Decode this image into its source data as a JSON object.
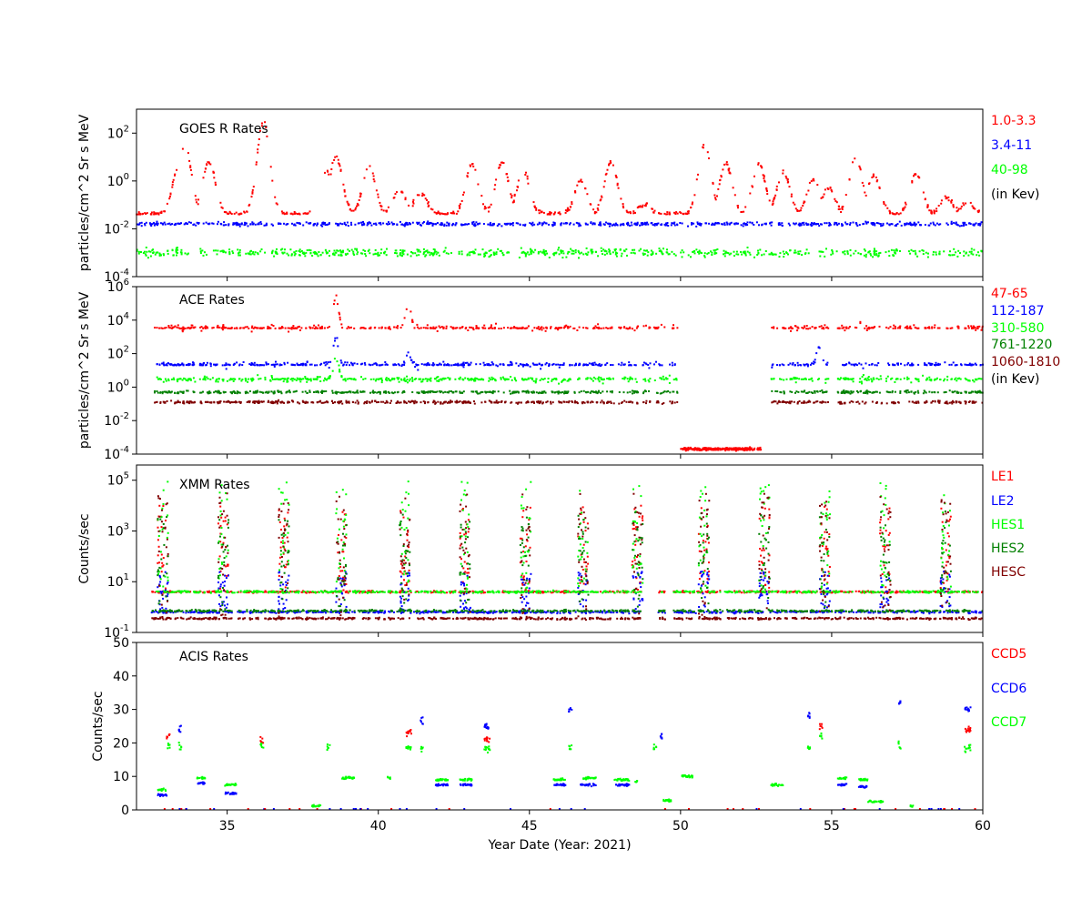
{
  "xlabel": "Year Date (Year: 2021)",
  "x_ticks": [
    35,
    40,
    45,
    50,
    55,
    60
  ],
  "xlim": [
    32,
    60
  ],
  "colors": {
    "red": "#ff0000",
    "blue": "#0000ff",
    "lime": "#00ff00",
    "green": "#008000",
    "darkred": "#800000",
    "black": "#000000"
  },
  "chart_data": [
    {
      "type": "scatter",
      "title": "GOES R Rates",
      "ylabel": "particles/cm^2 Sr s MeV",
      "yscale": "log",
      "ylim_exp": [
        -4,
        3
      ],
      "y_ticks": [
        {
          "base": "10",
          "exp": "2"
        },
        {
          "base": "10",
          "exp": "0"
        },
        {
          "base": "10",
          "exp": "-2"
        },
        {
          "base": "10",
          "exp": "-4"
        }
      ],
      "legend": [
        {
          "label": "1.0-3.3",
          "color": "#ff0000"
        },
        {
          "label": "3.4-11",
          "color": "#0000ff"
        },
        {
          "label": "40-98",
          "color": "#00ff00"
        },
        {
          "label": "(in Kev)",
          "color": "#000000"
        }
      ],
      "series": [
        {
          "name": "1.0-3.3",
          "color": "#ff0000",
          "baseline_exp": -1.4,
          "peaks": [
            [
              33.6,
              1.5
            ],
            [
              33.4,
              0.6
            ],
            [
              34.4,
              0.8
            ],
            [
              36.2,
              2.5
            ],
            [
              38.6,
              1.0
            ],
            [
              38.3,
              0.4
            ],
            [
              39.7,
              0.6
            ],
            [
              40.7,
              -0.4
            ],
            [
              41.4,
              -0.5
            ],
            [
              43.1,
              0.7
            ],
            [
              44.1,
              0.8
            ],
            [
              44.8,
              0.4
            ],
            [
              46.7,
              0.0
            ],
            [
              47.7,
              0.8
            ],
            [
              48.8,
              -1.0
            ],
            [
              50.8,
              1.5
            ],
            [
              51.5,
              0.7
            ],
            [
              52.6,
              0.7
            ],
            [
              53.4,
              0.4
            ],
            [
              54.4,
              0.1
            ],
            [
              54.9,
              -0.3
            ],
            [
              55.8,
              1.0
            ],
            [
              56.4,
              0.2
            ],
            [
              57.8,
              0.3
            ],
            [
              58.8,
              -0.7
            ],
            [
              59.5,
              -0.9
            ]
          ]
        },
        {
          "name": "3.4-11",
          "color": "#0000ff",
          "baseline_exp": -1.8,
          "peaks": []
        },
        {
          "name": "40-98",
          "color": "#00ff00",
          "baseline_exp": -3.0,
          "peaks": []
        }
      ]
    },
    {
      "type": "scatter",
      "title": "ACE Rates",
      "ylabel": "particles/cm^2 Sr s MeV",
      "yscale": "log",
      "ylim_exp": [
        -4,
        6
      ],
      "y_ticks": [
        {
          "base": "10",
          "exp": "6"
        },
        {
          "base": "10",
          "exp": "4"
        },
        {
          "base": "10",
          "exp": "2"
        },
        {
          "base": "10",
          "exp": "0"
        },
        {
          "base": "10",
          "exp": "-2"
        },
        {
          "base": "10",
          "exp": "-4"
        }
      ],
      "legend": [
        {
          "label": "47-65",
          "color": "#ff0000"
        },
        {
          "label": "112-187",
          "color": "#0000ff"
        },
        {
          "label": "310-580",
          "color": "#00ff00"
        },
        {
          "label": "761-1220",
          "color": "#008000"
        },
        {
          "label": "1060-1810",
          "color": "#800000"
        },
        {
          "label": "(in Kev)",
          "color": "#000000"
        }
      ],
      "gaps": [
        [
          33.95,
          34.1
        ],
        [
          47.8,
          47.95
        ],
        [
          48.6,
          48.75
        ],
        [
          49.0,
          49.1
        ],
        [
          49.9,
          53.0
        ],
        [
          54.9,
          55.2
        ],
        [
          56.7,
          56.8
        ],
        [
          57.3,
          57.4
        ],
        [
          57.9,
          58.0
        ],
        [
          58.6,
          58.7
        ],
        [
          59.3,
          59.4
        ]
      ],
      "series": [
        {
          "name": "47-65",
          "color": "#ff0000",
          "baseline_exp": 3.5,
          "peaks": [
            [
              38.6,
              5.5
            ],
            [
              41.0,
              5.2
            ],
            [
              56.0,
              3.8
            ]
          ]
        },
        {
          "name": "112-187",
          "color": "#0000ff",
          "baseline_exp": 1.3,
          "peaks": [
            [
              38.6,
              3.0
            ],
            [
              41.0,
              2.0
            ],
            [
              54.6,
              2.4
            ]
          ]
        },
        {
          "name": "310-580",
          "color": "#00ff00",
          "baseline_exp": 0.45,
          "peaks": [
            [
              38.6,
              1.8
            ]
          ]
        },
        {
          "name": "761-1220",
          "color": "#008000",
          "baseline_exp": -0.3,
          "peaks": []
        },
        {
          "name": "1060-1810",
          "color": "#800000",
          "baseline_exp": -0.9,
          "peaks": []
        }
      ],
      "gap_series": {
        "name": "47-65",
        "color": "#ff0000",
        "x_range": [
          50.0,
          52.7
        ],
        "level_exp": -3.7
      }
    },
    {
      "type": "scatter",
      "title": "XMM Rates",
      "ylabel": "Counts/sec",
      "yscale": "log",
      "ylim_exp": [
        -1,
        5.6
      ],
      "y_ticks": [
        {
          "base": "10",
          "exp": "5"
        },
        {
          "base": "10",
          "exp": "3"
        },
        {
          "base": "10",
          "exp": "1"
        },
        {
          "base": "10",
          "exp": "-1"
        }
      ],
      "legend": [
        {
          "label": "LE1",
          "color": "#ff0000"
        },
        {
          "label": "LE2",
          "color": "#0000ff"
        },
        {
          "label": "HES1",
          "color": "#00ff00"
        },
        {
          "label": "HES2",
          "color": "#008000"
        },
        {
          "label": "HESC",
          "color": "#800000"
        }
      ],
      "gaps": [
        [
          48.7,
          49.25
        ],
        [
          49.5,
          49.75
        ]
      ],
      "perigees": [
        32.9,
        34.9,
        36.9,
        38.8,
        40.9,
        42.9,
        44.9,
        46.8,
        48.6,
        50.8,
        52.8,
        54.8,
        56.8,
        58.8
      ],
      "series": [
        {
          "name": "LE1",
          "color": "#ff0000",
          "baseline_exp": 0.6,
          "peak_exp": 4.0
        },
        {
          "name": "LE2",
          "color": "#0000ff",
          "baseline_exp": -0.2,
          "peak_exp": 1.4
        },
        {
          "name": "HES1",
          "color": "#00ff00",
          "baseline_exp": 0.6,
          "peak_exp": 5.0
        },
        {
          "name": "HES2",
          "color": "#008000",
          "baseline_exp": -0.15,
          "peak_exp": 3.8
        },
        {
          "name": "HESC",
          "color": "#800000",
          "baseline_exp": -0.45,
          "peak_exp": 4.5
        }
      ]
    },
    {
      "type": "scatter",
      "title": "ACIS Rates",
      "ylabel": "Counts/sec",
      "yscale": "linear",
      "ylim": [
        0,
        50
      ],
      "y_ticks": [
        {
          "base": "0"
        },
        {
          "base": "10"
        },
        {
          "base": "20"
        },
        {
          "base": "30"
        },
        {
          "base": "40"
        },
        {
          "base": "50"
        }
      ],
      "legend": [
        {
          "label": "CCD5",
          "color": "#ff0000"
        },
        {
          "label": "CCD6",
          "color": "#0000ff"
        },
        {
          "label": "CCD7",
          "color": "#00ff00"
        }
      ],
      "clusters": [
        [
          32.7,
          33.0,
          6,
          "#00ff00"
        ],
        [
          32.7,
          33.0,
          4.5,
          "#0000ff"
        ],
        [
          33.0,
          33.1,
          22,
          "#ff0000"
        ],
        [
          33.0,
          33.1,
          19,
          "#00ff00"
        ],
        [
          33.4,
          33.5,
          24,
          "#0000ff"
        ],
        [
          33.4,
          33.5,
          19,
          "#00ff00"
        ],
        [
          34.0,
          34.3,
          8,
          "#0000ff"
        ],
        [
          34.0,
          34.3,
          9.5,
          "#00ff00"
        ],
        [
          34.9,
          35.3,
          7.5,
          "#00ff00"
        ],
        [
          34.9,
          35.3,
          5,
          "#0000ff"
        ],
        [
          36.1,
          36.2,
          21,
          "#ff0000"
        ],
        [
          36.1,
          36.2,
          19,
          "#00ff00"
        ],
        [
          37.8,
          38.1,
          1.2,
          "#00ff00"
        ],
        [
          38.3,
          38.4,
          18.5,
          "#00ff00"
        ],
        [
          38.8,
          39.2,
          9.5,
          "#00ff00"
        ],
        [
          40.3,
          40.4,
          9.5,
          "#00ff00"
        ],
        [
          40.9,
          41.1,
          23,
          "#ff0000"
        ],
        [
          40.9,
          41.1,
          18.5,
          "#00ff00"
        ],
        [
          41.4,
          41.5,
          18.5,
          "#00ff00"
        ],
        [
          41.4,
          41.5,
          27,
          "#0000ff"
        ],
        [
          41.9,
          42.3,
          9,
          "#00ff00"
        ],
        [
          41.9,
          42.3,
          7.5,
          "#0000ff"
        ],
        [
          42.7,
          43.1,
          9,
          "#00ff00"
        ],
        [
          42.7,
          43.1,
          7.5,
          "#0000ff"
        ],
        [
          43.5,
          43.7,
          25,
          "#0000ff"
        ],
        [
          43.5,
          43.7,
          21,
          "#ff0000"
        ],
        [
          43.5,
          43.7,
          18.5,
          "#00ff00"
        ],
        [
          45.8,
          46.2,
          9,
          "#00ff00"
        ],
        [
          45.8,
          46.2,
          7.5,
          "#0000ff"
        ],
        [
          46.3,
          46.4,
          30,
          "#0000ff"
        ],
        [
          46.3,
          46.4,
          18.5,
          "#00ff00"
        ],
        [
          46.7,
          47.2,
          9.5,
          "#00ff00"
        ],
        [
          46.7,
          47.2,
          7.5,
          "#0000ff"
        ],
        [
          47.8,
          48.3,
          9,
          "#00ff00"
        ],
        [
          47.8,
          48.3,
          7.5,
          "#0000ff"
        ],
        [
          48.5,
          48.6,
          8.5,
          "#00ff00"
        ],
        [
          49.1,
          49.2,
          18.5,
          "#00ff00"
        ],
        [
          49.3,
          49.4,
          22,
          "#0000ff"
        ],
        [
          49.4,
          49.7,
          2.8,
          "#00ff00"
        ],
        [
          50.0,
          50.4,
          10,
          "#00ff00"
        ],
        [
          53.0,
          53.4,
          7.5,
          "#00ff00"
        ],
        [
          54.2,
          54.3,
          28,
          "#0000ff"
        ],
        [
          54.2,
          54.3,
          18.5,
          "#00ff00"
        ],
        [
          54.6,
          54.7,
          25,
          "#ff0000"
        ],
        [
          54.6,
          54.7,
          22,
          "#00ff00"
        ],
        [
          55.2,
          55.5,
          9.5,
          "#00ff00"
        ],
        [
          55.2,
          55.5,
          7.5,
          "#0000ff"
        ],
        [
          55.9,
          56.2,
          9,
          "#00ff00"
        ],
        [
          55.9,
          56.2,
          7,
          "#0000ff"
        ],
        [
          56.2,
          56.7,
          2.5,
          "#00ff00"
        ],
        [
          57.2,
          57.3,
          32,
          "#0000ff"
        ],
        [
          57.2,
          57.3,
          19.5,
          "#00ff00"
        ],
        [
          57.6,
          57.7,
          1.2,
          "#00ff00"
        ],
        [
          59.4,
          59.6,
          30,
          "#0000ff"
        ],
        [
          59.4,
          59.6,
          24,
          "#ff0000"
        ],
        [
          59.4,
          59.6,
          18.5,
          "#00ff00"
        ]
      ]
    }
  ]
}
